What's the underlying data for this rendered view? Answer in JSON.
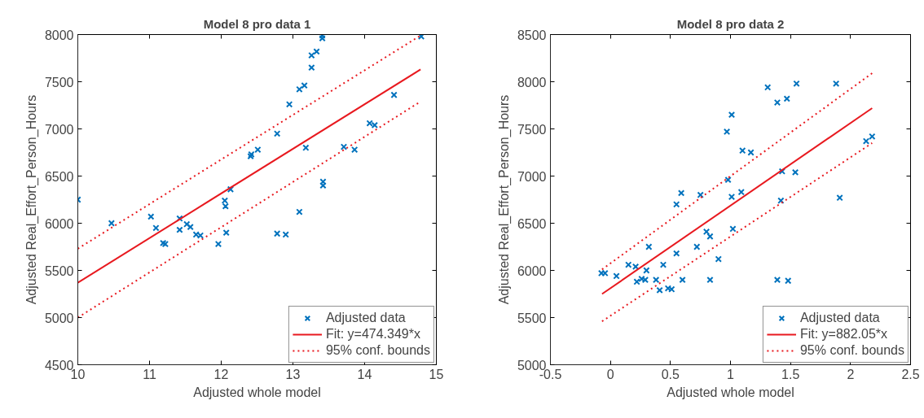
{
  "chart_data": [
    {
      "type": "scatter",
      "title": "Model 8 pro data 1",
      "xlabel": "Adjusted whole model",
      "ylabel": "Adjusted Real_Effort_Person_Hours",
      "xlim": [
        10,
        15
      ],
      "ylim": [
        4500,
        8000
      ],
      "xticks": [
        10,
        11,
        12,
        13,
        14,
        15
      ],
      "yticks": [
        4500,
        5000,
        5500,
        6000,
        6500,
        7000,
        7500,
        8000
      ],
      "grid": false,
      "legend": "bottom right",
      "series": [
        {
          "name": "Adjusted data",
          "marker": "cross",
          "color": "#0072bd",
          "x": [
            10.0,
            10.47,
            11.02,
            11.09,
            11.19,
            11.22,
            11.42,
            11.42,
            11.52,
            11.57,
            11.65,
            11.71,
            11.96,
            12.05,
            12.06,
            12.07,
            12.13,
            12.41,
            12.42,
            12.51,
            12.78,
            12.78,
            12.9,
            12.95,
            13.09,
            13.09,
            13.16,
            13.18,
            13.26,
            13.26,
            13.33,
            13.41,
            13.41,
            13.42,
            13.42,
            13.71,
            13.86,
            14.07,
            14.14,
            14.41,
            14.79
          ],
          "values": [
            6250,
            6000,
            6070,
            5950,
            5790,
            5780,
            6050,
            5930,
            5990,
            5960,
            5880,
            5870,
            5780,
            6240,
            6180,
            5900,
            6360,
            6710,
            6730,
            6780,
            6950,
            5890,
            5880,
            7260,
            6120,
            7420,
            7460,
            6800,
            7650,
            7780,
            7820,
            7990,
            7960,
            6440,
            6400,
            6810,
            6780,
            7060,
            7040,
            7360,
            7980
          ]
        },
        {
          "name": "Fit: y=474.349*x",
          "type": "line",
          "line_style": "solid",
          "color": "#e8191f",
          "x": [
            10.0,
            14.78
          ],
          "values": [
            5370,
            7630
          ]
        },
        {
          "name": "95% conf. bounds",
          "type": "line",
          "line_style": "dotted",
          "color": "#e8191f",
          "x": [
            10.0,
            14.78
          ],
          "values": [
            5730,
            7990
          ]
        },
        {
          "type": "line",
          "line_style": "dotted",
          "color": "#e8191f",
          "x": [
            10.0,
            14.78
          ],
          "values": [
            5000,
            7290
          ]
        }
      ]
    },
    {
      "type": "scatter",
      "title": "Model 8 pro data 2",
      "xlabel": "Adjusted whole model",
      "ylabel": "Adjusted Real_Effort_Person_Hours",
      "xlim": [
        -0.5,
        2.5
      ],
      "ylim": [
        5000,
        8500
      ],
      "xticks": [
        -0.5,
        0,
        0.5,
        1,
        1.5,
        2,
        2.5
      ],
      "yticks": [
        5000,
        5500,
        6000,
        6500,
        7000,
        7500,
        8000,
        8500
      ],
      "grid": false,
      "legend": "bottom right",
      "series": [
        {
          "name": "Adjusted data",
          "marker": "cross",
          "color": "#0072bd",
          "x": [
            -0.075,
            -0.045,
            0.05,
            0.15,
            0.21,
            0.32,
            0.3,
            0.44,
            0.55,
            0.55,
            0.59,
            0.72,
            0.75,
            0.8,
            0.83,
            0.9,
            0.97,
            0.98,
            1.01,
            1.01,
            1.02,
            1.09,
            1.1,
            1.17,
            1.31,
            1.39,
            1.42,
            1.43,
            1.47,
            1.54,
            1.55,
            1.88,
            1.91,
            2.13,
            2.18,
            0.22,
            0.26,
            0.29,
            0.38,
            0.41,
            0.48,
            0.51,
            0.6,
            0.83,
            1.39,
            1.48
          ],
          "values": [
            5970,
            5970,
            5940,
            6060,
            6040,
            6250,
            6000,
            6060,
            6180,
            6700,
            6820,
            6250,
            6800,
            6410,
            6360,
            6120,
            7470,
            6960,
            7650,
            6780,
            6440,
            6830,
            7270,
            7250,
            7940,
            7780,
            6740,
            7050,
            7820,
            7040,
            7980,
            7980,
            6770,
            7370,
            7420,
            5880,
            5910,
            5900,
            5900,
            5790,
            5810,
            5800,
            5900,
            5900,
            5900,
            5890
          ]
        },
        {
          "name": "Fit: y=882.05*x",
          "type": "line",
          "line_style": "solid",
          "color": "#e8191f",
          "x": [
            -0.07,
            2.18
          ],
          "values": [
            5750,
            7720
          ]
        },
        {
          "name": "95% conf. bounds",
          "type": "line",
          "line_style": "dotted",
          "color": "#e8191f",
          "x": [
            -0.07,
            2.18
          ],
          "values": [
            6010,
            8090
          ]
        },
        {
          "type": "line",
          "line_style": "dotted",
          "color": "#e8191f",
          "x": [
            -0.07,
            2.18
          ],
          "values": [
            5460,
            7350
          ]
        }
      ]
    }
  ]
}
